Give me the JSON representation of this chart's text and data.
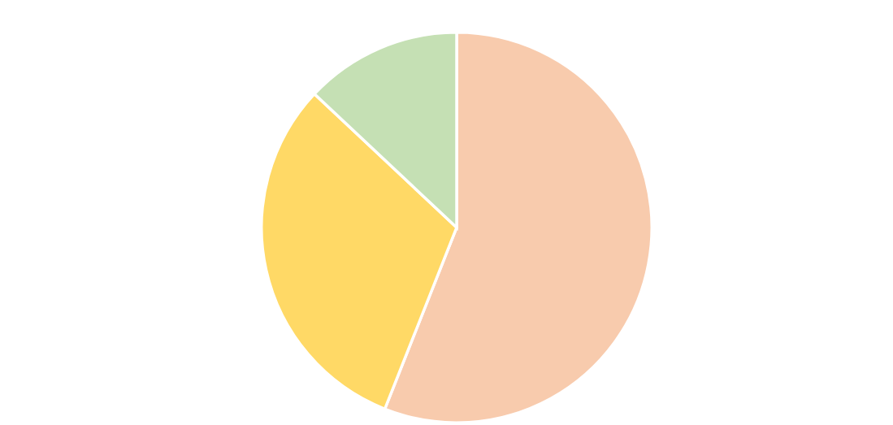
{
  "chart_data": {
    "type": "pie",
    "categories": [
      null,
      null,
      null
    ],
    "values": [
      56,
      31,
      13
    ],
    "colors": [
      "#f8cbad",
      "#ffd966",
      "#c5e0b4"
    ]
  }
}
